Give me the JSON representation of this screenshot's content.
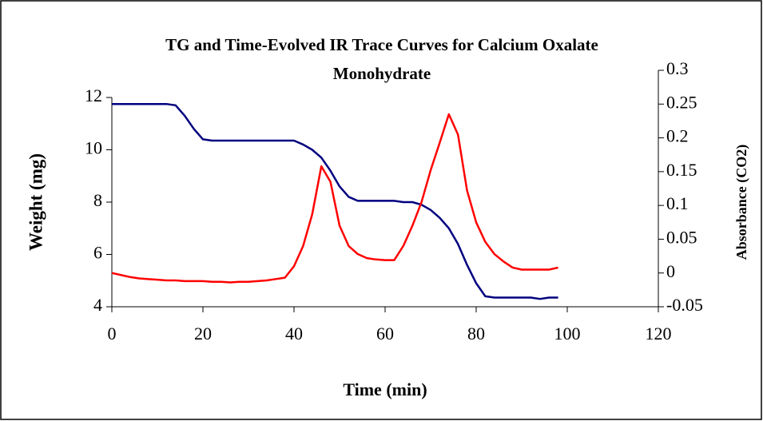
{
  "chart_data": {
    "type": "line",
    "title": "TG and Time-Evolved IR Trace Curves for Calcium Oxalate Monohydrate",
    "xlabel": "Time (min)",
    "ylabel": "Weight (mg)",
    "y2label": "Absorbance (CO2)",
    "x": [
      0,
      2,
      4,
      6,
      8,
      10,
      12,
      14,
      16,
      18,
      20,
      22,
      24,
      26,
      28,
      30,
      32,
      34,
      36,
      38,
      40,
      42,
      44,
      46,
      48,
      50,
      52,
      54,
      56,
      58,
      60,
      62,
      64,
      66,
      68,
      70,
      72,
      74,
      76,
      78,
      80,
      82,
      84,
      86,
      88,
      90,
      92,
      94,
      96,
      98
    ],
    "series": [
      {
        "name": "Weight",
        "color": "#000080",
        "values": [
          11.75,
          11.75,
          11.75,
          11.75,
          11.75,
          11.75,
          11.75,
          11.7,
          11.3,
          10.8,
          10.4,
          10.35,
          10.35,
          10.35,
          10.35,
          10.35,
          10.35,
          10.35,
          10.35,
          10.35,
          10.35,
          10.2,
          10.0,
          9.7,
          9.2,
          8.6,
          8.2,
          8.05,
          8.05,
          8.05,
          8.05,
          8.05,
          8.0,
          8.0,
          7.9,
          7.7,
          7.4,
          7.0,
          6.4,
          5.6,
          4.9,
          4.4,
          4.35,
          4.35,
          4.35,
          4.35,
          4.35,
          4.3,
          4.35,
          4.35
        ]
      },
      {
        "name": "Absorbance",
        "color": "#ff0000",
        "axis": "y2",
        "values": [
          0,
          -0.003,
          -0.006,
          -0.008,
          -0.009,
          -0.01,
          -0.011,
          -0.011,
          -0.012,
          -0.012,
          -0.012,
          -0.013,
          -0.013,
          -0.014,
          -0.013,
          -0.013,
          -0.012,
          -0.011,
          -0.009,
          -0.007,
          0.01,
          0.04,
          0.087,
          0.158,
          0.135,
          0.07,
          0.04,
          0.028,
          0.022,
          0.02,
          0.019,
          0.019,
          0.04,
          0.07,
          0.105,
          0.152,
          0.193,
          0.235,
          0.205,
          0.122,
          0.075,
          0.046,
          0.028,
          0.017,
          0.008,
          0.005,
          0.005,
          0.005,
          0.005,
          0.008
        ]
      }
    ],
    "xlim": [
      0,
      120
    ],
    "xticks": [
      0,
      20,
      40,
      60,
      80,
      100,
      120
    ],
    "ylim": [
      4,
      12
    ],
    "yticks": [
      4,
      6,
      8,
      10,
      12
    ],
    "y2lim": [
      -0.05,
      0.3
    ],
    "y2ticks": [
      -0.05,
      0,
      0.05,
      0.1,
      0.15,
      0.2,
      0.25,
      0.3
    ]
  }
}
